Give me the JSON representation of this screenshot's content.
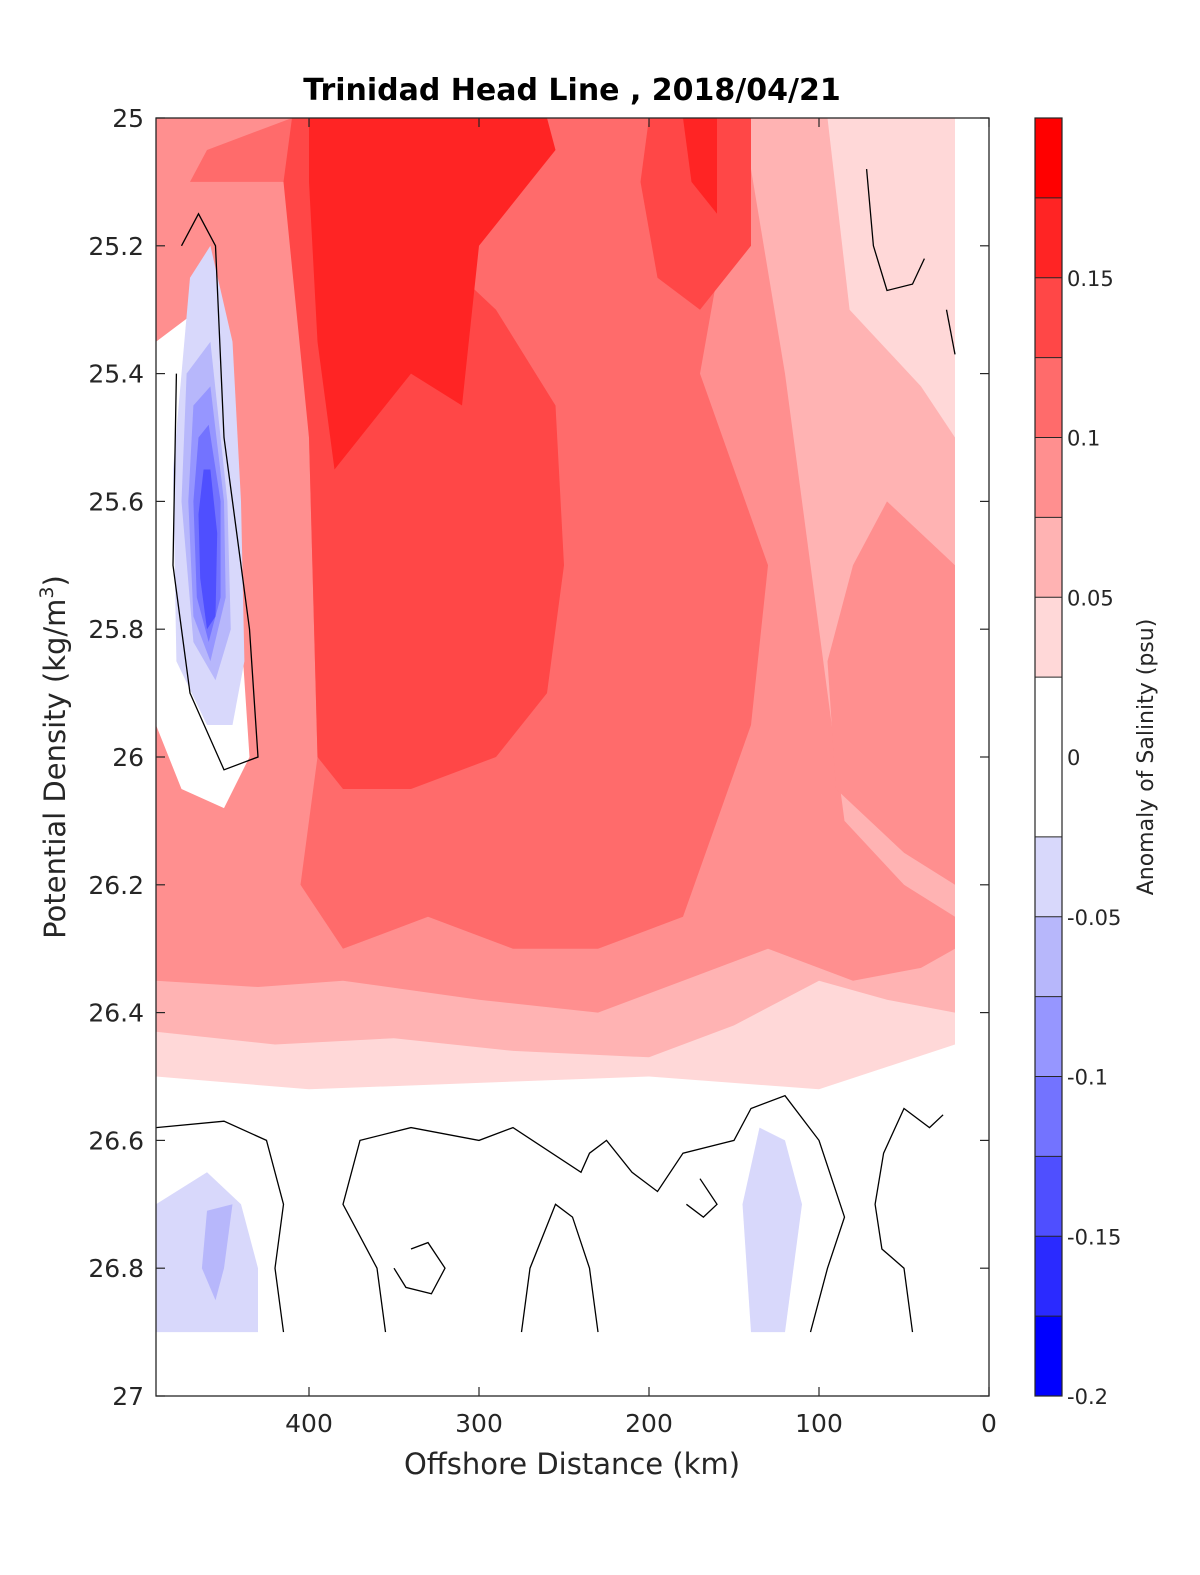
{
  "chart_data": {
    "type": "heatmap",
    "subtype": "filled-contour",
    "title": "Trinidad Head Line , 2018/04/21",
    "xlabel": "Offshore Distance (km)",
    "ylabel": "Potential Density (kg/m",
    "ylabel_sup": "3",
    "ylabel_close": ")",
    "colorbar_label": "Anomaly of Salinity (psu)",
    "xlim": [
      490,
      0
    ],
    "x_reversed": true,
    "ylim": [
      25,
      27
    ],
    "y_reversed": true,
    "xticks": [
      400,
      300,
      200,
      100,
      0
    ],
    "xtick_labels": [
      "400",
      "300",
      "200",
      "100",
      "0"
    ],
    "yticks": [
      25,
      25.2,
      25.4,
      25.6,
      25.8,
      26,
      26.2,
      26.4,
      26.6,
      26.8,
      27
    ],
    "ytick_labels": [
      "25",
      "25.2",
      "25.4",
      "25.6",
      "25.8",
      "26",
      "26.2",
      "26.4",
      "26.6",
      "26.8",
      "27"
    ],
    "clim": [
      -0.2,
      0.2
    ],
    "colorbar_ticks": [
      0.15,
      0.1,
      0.05,
      0,
      -0.05,
      -0.1,
      -0.15,
      -0.2
    ],
    "colorbar_tick_labels": [
      "0.15",
      "0.1",
      "0.05",
      "0",
      "-0.05",
      "-0.1",
      "-0.15",
      "-0.2"
    ],
    "levels": [
      -0.2,
      -0.175,
      -0.15,
      -0.125,
      -0.1,
      -0.075,
      -0.05,
      -0.025,
      0.025,
      0.05,
      0.075,
      0.1,
      0.125,
      0.15,
      0.175,
      0.2
    ],
    "level_colors": [
      "#0000ff",
      "#2a2aff",
      "#4f4fff",
      "#7373ff",
      "#9696ff",
      "#b7b7fb",
      "#d8d8fb",
      "#ffffff",
      "#ffd8d8",
      "#ffb3b3",
      "#ff8f8f",
      "#ff6b6b",
      "#ff4747",
      "#ff2424",
      "#ff0000"
    ],
    "data_extent": {
      "x": [
        490,
        20
      ],
      "y": [
        25,
        26.9
      ]
    },
    "regions": [
      {
        "level": 0.0375,
        "points": [
          [
            490,
            25
          ],
          [
            20,
            25
          ],
          [
            20,
            26.45
          ],
          [
            100,
            26.52
          ],
          [
            200,
            26.5
          ],
          [
            300,
            26.51
          ],
          [
            400,
            26.52
          ],
          [
            490,
            26.5
          ]
        ]
      },
      {
        "level": 0.0625,
        "points": [
          [
            490,
            25
          ],
          [
            95,
            25
          ],
          [
            82,
            25.3
          ],
          [
            40,
            25.42
          ],
          [
            20,
            25.5
          ],
          [
            20,
            26.4
          ],
          [
            60,
            26.38
          ],
          [
            100,
            26.35
          ],
          [
            150,
            26.42
          ],
          [
            200,
            26.47
          ],
          [
            280,
            26.46
          ],
          [
            350,
            26.44
          ],
          [
            420,
            26.45
          ],
          [
            490,
            26.43
          ]
        ]
      },
      {
        "level": 0.0875,
        "points": [
          [
            490,
            25
          ],
          [
            145,
            25
          ],
          [
            120,
            25.4
          ],
          [
            100,
            25.8
          ],
          [
            85,
            26.1
          ],
          [
            50,
            26.2
          ],
          [
            20,
            26.25
          ],
          [
            20,
            26.3
          ],
          [
            40,
            26.33
          ],
          [
            80,
            26.35
          ],
          [
            130,
            26.3
          ],
          [
            180,
            26.35
          ],
          [
            230,
            26.4
          ],
          [
            300,
            26.38
          ],
          [
            380,
            26.35
          ],
          [
            430,
            26.36
          ],
          [
            490,
            26.35
          ]
        ]
      },
      {
        "level": 0.0875,
        "points": [
          [
            60,
            25.6
          ],
          [
            20,
            25.7
          ],
          [
            20,
            26.2
          ],
          [
            50,
            26.15
          ],
          [
            90,
            26.05
          ],
          [
            95,
            25.85
          ],
          [
            80,
            25.7
          ]
        ]
      },
      {
        "level": 0.1125,
        "points": [
          [
            470,
            25.1
          ],
          [
            410,
            25.1
          ],
          [
            400,
            25.5
          ],
          [
            395,
            26
          ],
          [
            405,
            26.2
          ],
          [
            380,
            26.3
          ],
          [
            330,
            26.25
          ],
          [
            280,
            26.3
          ],
          [
            230,
            26.3
          ],
          [
            180,
            26.25
          ],
          [
            160,
            26.1
          ],
          [
            140,
            25.95
          ],
          [
            130,
            25.7
          ],
          [
            150,
            25.55
          ],
          [
            170,
            25.4
          ],
          [
            160,
            25.25
          ],
          [
            145,
            25
          ],
          [
            410,
            25
          ],
          [
            460,
            25.05
          ]
        ]
      },
      {
        "level": 0.1375,
        "points": [
          [
            415,
            25.1
          ],
          [
            400,
            25.5
          ],
          [
            395,
            26
          ],
          [
            380,
            26.05
          ],
          [
            340,
            26.05
          ],
          [
            290,
            26
          ],
          [
            260,
            25.9
          ],
          [
            250,
            25.7
          ],
          [
            255,
            25.45
          ],
          [
            290,
            25.3
          ],
          [
            330,
            25.2
          ],
          [
            300,
            25.05
          ],
          [
            320,
            25
          ],
          [
            410,
            25
          ]
        ]
      },
      {
        "level": 0.1375,
        "points": [
          [
            200,
            25
          ],
          [
            140,
            25
          ],
          [
            140,
            25.2
          ],
          [
            170,
            25.3
          ],
          [
            195,
            25.25
          ],
          [
            205,
            25.1
          ]
        ]
      },
      {
        "level": 0.1625,
        "points": [
          [
            400,
            25
          ],
          [
            400,
            25.1
          ],
          [
            395,
            25.35
          ],
          [
            385,
            25.55
          ],
          [
            355,
            25.45
          ],
          [
            340,
            25.4
          ],
          [
            310,
            25.45
          ],
          [
            300,
            25.2
          ],
          [
            270,
            25.1
          ],
          [
            255,
            25.05
          ],
          [
            260,
            25
          ]
        ]
      },
      {
        "level": 0.1625,
        "points": [
          [
            180,
            25
          ],
          [
            160,
            25
          ],
          [
            160,
            25.15
          ],
          [
            175,
            25.1
          ]
        ]
      },
      {
        "level": 0.025,
        "points": [
          [
            490,
            25.35
          ],
          [
            465,
            25.3
          ],
          [
            445,
            25.5
          ],
          [
            440,
            25.8
          ],
          [
            435,
            26
          ],
          [
            450,
            26.08
          ],
          [
            475,
            26.05
          ],
          [
            490,
            25.95
          ]
        ]
      },
      {
        "level": -0.0375,
        "points": [
          [
            470,
            25.25
          ],
          [
            458,
            25.2
          ],
          [
            445,
            25.35
          ],
          [
            440,
            25.6
          ],
          [
            438,
            25.85
          ],
          [
            445,
            25.95
          ],
          [
            460,
            25.95
          ],
          [
            478,
            25.85
          ],
          [
            480,
            25.55
          ]
        ]
      },
      {
        "level": -0.0625,
        "points": [
          [
            472,
            25.4
          ],
          [
            458,
            25.35
          ],
          [
            448,
            25.6
          ],
          [
            446,
            25.8
          ],
          [
            455,
            25.88
          ],
          [
            468,
            25.82
          ],
          [
            475,
            25.6
          ]
        ]
      },
      {
        "level": -0.0875,
        "points": [
          [
            468,
            25.45
          ],
          [
            458,
            25.42
          ],
          [
            450,
            25.6
          ],
          [
            449,
            25.75
          ],
          [
            458,
            25.85
          ],
          [
            468,
            25.78
          ],
          [
            471,
            25.6
          ]
        ]
      },
      {
        "level": -0.1125,
        "points": [
          [
            465,
            25.5
          ],
          [
            459,
            25.48
          ],
          [
            452,
            25.6
          ],
          [
            452,
            25.75
          ],
          [
            459,
            25.82
          ],
          [
            466,
            25.75
          ],
          [
            468,
            25.6
          ]
        ]
      },
      {
        "level": -0.1375,
        "points": [
          [
            462,
            25.55
          ],
          [
            458,
            25.55
          ],
          [
            454,
            25.65
          ],
          [
            455,
            25.78
          ],
          [
            460,
            25.8
          ],
          [
            464,
            25.72
          ],
          [
            465,
            25.62
          ]
        ]
      },
      {
        "level": -0.0375,
        "points": [
          [
            490,
            26.7
          ],
          [
            460,
            26.65
          ],
          [
            440,
            26.7
          ],
          [
            430,
            26.8
          ],
          [
            430,
            26.9
          ],
          [
            490,
            26.9
          ]
        ]
      },
      {
        "level": -0.0625,
        "points": [
          [
            460,
            26.71
          ],
          [
            445,
            26.7
          ],
          [
            450,
            26.8
          ],
          [
            455,
            26.85
          ],
          [
            463,
            26.8
          ]
        ]
      },
      {
        "level": -0.0375,
        "points": [
          [
            135,
            26.58
          ],
          [
            120,
            26.6
          ],
          [
            110,
            26.7
          ],
          [
            120,
            26.9
          ],
          [
            140,
            26.9
          ],
          [
            145,
            26.7
          ]
        ]
      }
    ],
    "zero_contours": [
      [
        [
          475,
          25.2
        ],
        [
          465,
          25.15
        ],
        [
          455,
          25.2
        ],
        [
          450,
          25.5
        ],
        [
          435,
          25.8
        ],
        [
          430,
          26
        ],
        [
          450,
          26.02
        ],
        [
          470,
          25.9
        ],
        [
          480,
          25.7
        ],
        [
          478,
          25.4
        ]
      ],
      [
        [
          490,
          26.58
        ],
        [
          450,
          26.57
        ],
        [
          425,
          26.6
        ],
        [
          415,
          26.7
        ],
        [
          420,
          26.8
        ],
        [
          415,
          26.9
        ]
      ],
      [
        [
          355,
          26.9
        ],
        [
          360,
          26.8
        ],
        [
          380,
          26.7
        ],
        [
          370,
          26.6
        ],
        [
          340,
          26.58
        ],
        [
          300,
          26.6
        ],
        [
          280,
          26.58
        ],
        [
          240,
          26.65
        ],
        [
          235,
          26.62
        ],
        [
          225,
          26.6
        ],
        [
          210,
          26.65
        ],
        [
          195,
          26.68
        ],
        [
          180,
          26.62
        ],
        [
          150,
          26.6
        ],
        [
          140,
          26.55
        ],
        [
          120,
          26.53
        ],
        [
          100,
          26.6
        ],
        [
          85,
          26.72
        ],
        [
          95,
          26.8
        ],
        [
          105,
          26.9
        ]
      ],
      [
        [
          275,
          26.9
        ],
        [
          270,
          26.8
        ],
        [
          255,
          26.7
        ],
        [
          245,
          26.72
        ],
        [
          235,
          26.8
        ],
        [
          230,
          26.9
        ]
      ],
      [
        [
          340,
          26.77
        ],
        [
          330,
          26.76
        ],
        [
          320,
          26.8
        ],
        [
          328,
          26.84
        ],
        [
          343,
          26.83
        ],
        [
          350,
          26.8
        ]
      ],
      [
        [
          170,
          26.66
        ],
        [
          160,
          26.7
        ],
        [
          168,
          26.72
        ],
        [
          178,
          26.7
        ]
      ],
      [
        [
          45,
          26.9
        ],
        [
          50,
          26.8
        ],
        [
          63,
          26.77
        ],
        [
          67,
          26.7
        ],
        [
          62,
          26.62
        ],
        [
          50,
          26.55
        ],
        [
          35,
          26.58
        ],
        [
          27,
          26.56
        ]
      ],
      [
        [
          72,
          25.08
        ],
        [
          68,
          25.2
        ],
        [
          60,
          25.27
        ],
        [
          45,
          25.26
        ],
        [
          38,
          25.22
        ]
      ],
      [
        [
          25,
          25.3
        ],
        [
          20,
          25.37
        ]
      ]
    ]
  }
}
